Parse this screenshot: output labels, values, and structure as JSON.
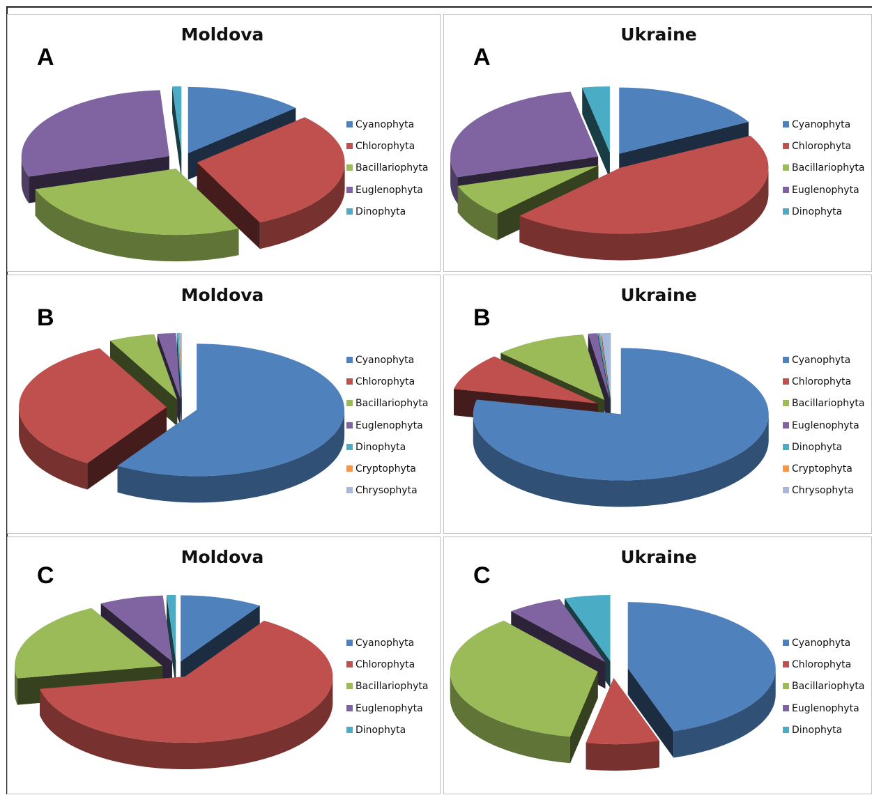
{
  "colors": {
    "Cyanophyta": "#4f81bd",
    "Chlorophyta": "#c0504d",
    "Bacillariophyta": "#9bbb59",
    "Euglenophyta": "#8064a2",
    "Dinophyta": "#4bacc6",
    "Cryptophyta": "#f79646",
    "Chrysophyta": "#a5b8dc"
  },
  "chart_data": [
    {
      "type": "pie",
      "title": "Moldova",
      "letter": "A",
      "legend": [
        "Cyanophyta",
        "Chlorophyta",
        "Bacillariophyta",
        "Euglenophyta",
        "Dinophyta"
      ],
      "categories": [
        "Cyanophyta",
        "Chlorophyta",
        "Bacillariophyta",
        "Euglenophyta",
        "Dinophyta"
      ],
      "values": [
        13,
        30,
        27,
        29,
        1
      ]
    },
    {
      "type": "pie",
      "title": "Ukraine",
      "letter": "A",
      "legend": [
        "Cyanophyta",
        "Chlorophyta",
        "Bacillariophyta",
        "Euglenophyta",
        "Dinophyta"
      ],
      "categories": [
        "Cyanophyta",
        "Chlorophyta",
        "Bacillariophyta",
        "Euglenophyta",
        "Dinophyta"
      ],
      "values": [
        17,
        45,
        8,
        27,
        3
      ]
    },
    {
      "type": "pie",
      "title": "Moldova",
      "letter": "B",
      "legend": [
        "Cyanophyta",
        "Chlorophyta",
        "Bacillariophyta",
        "Euglenophyta",
        "Dinophyta",
        "Cryptophyta",
        "Chrysophyta"
      ],
      "categories": [
        "Cyanophyta",
        "Chlorophyta",
        "Bacillariophyta",
        "Euglenophyta",
        "Dinophyta",
        "Cryptophyta",
        "Chrysophyta"
      ],
      "values": [
        59,
        33.5,
        5,
        2,
        0.2,
        0.1,
        0.2
      ]
    },
    {
      "type": "pie",
      "title": "Ukraine",
      "letter": "B",
      "legend": [
        "Cyanophyta",
        "Chlorophyta",
        "Bacillariophyta",
        "Euglenophyta",
        "Dinophyta",
        "Cryptophyta",
        "Chrysophyta"
      ],
      "categories": [
        "Cyanophyta",
        "Chlorophyta",
        "Bacillariophyta",
        "Euglenophyta",
        "Dinophyta",
        "Cryptophyta",
        "Chrysophyta"
      ],
      "values": [
        78,
        9,
        10,
        1,
        0.2,
        0.1,
        1
      ]
    },
    {
      "type": "pie",
      "title": "Moldova",
      "letter": "C",
      "legend": [
        "Cyanophyta",
        "Chlorophyta",
        "Bacillariophyta",
        "Euglenophyta",
        "Dinophyta"
      ],
      "categories": [
        "Cyanophyta",
        "Chlorophyta",
        "Bacillariophyta",
        "Euglenophyta",
        "Dinophyta"
      ],
      "values": [
        9,
        63,
        20,
        7,
        1
      ]
    },
    {
      "type": "pie",
      "title": "Ukraine",
      "letter": "C",
      "legend": [
        "Cyanophyta",
        "Chlorophyta",
        "Bacillariophyta",
        "Euglenophyta",
        "Dinophyta"
      ],
      "categories": [
        "Cyanophyta",
        "Chlorophyta",
        "Bacillariophyta",
        "Euglenophyta",
        "Dinophyta"
      ],
      "values": [
        45,
        8,
        36,
        6,
        5
      ]
    }
  ]
}
